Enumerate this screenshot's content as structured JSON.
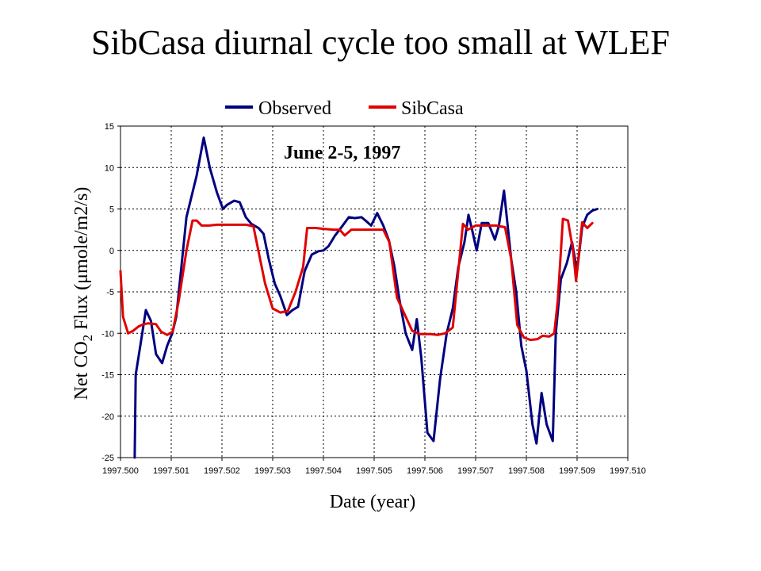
{
  "title": "SibCasa diurnal cycle too small at WLEF",
  "chart_data": {
    "type": "line",
    "xlabel": "Date (year)",
    "ylabel_prefix": "Net CO",
    "ylabel_sub": "2",
    "ylabel_suffix": " Flux (μmole/m2/s)",
    "annotation": "June 2-5, 1997",
    "xlim": [
      1997.5,
      1997.51
    ],
    "ylim": [
      -25,
      15
    ],
    "x_ticks": [
      "1997.500",
      "1997.501",
      "1997.502",
      "1997.503",
      "1997.504",
      "1997.505",
      "1997.506",
      "1997.507",
      "1997.508",
      "1997.509",
      "1997.510"
    ],
    "y_ticks": [
      "15",
      "10",
      "5",
      "0",
      "-5",
      "-10",
      "-15",
      "-20",
      "-25"
    ],
    "y_tick_values": [
      15,
      10,
      5,
      0,
      -5,
      -10,
      -15,
      -20,
      -25
    ],
    "x_tick_values": [
      1997.5,
      1997.501,
      1997.502,
      1997.503,
      1997.504,
      1997.505,
      1997.506,
      1997.507,
      1997.508,
      1997.509,
      1997.51
    ],
    "grid": "dashed",
    "legend_position": "top",
    "series": [
      {
        "name": "Observed",
        "color": "#000080",
        "points": [
          [
            1997.50028,
            -25
          ],
          [
            1997.5003,
            -15
          ],
          [
            1997.50039,
            -11.5
          ],
          [
            1997.5005,
            -7.2
          ],
          [
            1997.5006,
            -8.5
          ],
          [
            1997.5007,
            -12.5
          ],
          [
            1997.50082,
            -13.6
          ],
          [
            1997.50092,
            -11.5
          ],
          [
            1997.50102,
            -10
          ],
          [
            1997.5011,
            -8
          ],
          [
            1997.5013,
            4
          ],
          [
            1997.5015,
            9
          ],
          [
            1997.50164,
            13.6
          ],
          [
            1997.50176,
            10
          ],
          [
            1997.5019,
            7
          ],
          [
            1997.50202,
            5
          ],
          [
            1997.5021,
            5.5
          ],
          [
            1997.50224,
            6
          ],
          [
            1997.50235,
            5.8
          ],
          [
            1997.50247,
            4
          ],
          [
            1997.50258,
            3.2
          ],
          [
            1997.50272,
            2.7
          ],
          [
            1997.50282,
            2
          ],
          [
            1997.50292,
            -1
          ],
          [
            1997.50304,
            -4
          ],
          [
            1997.50315,
            -5.5
          ],
          [
            1997.50328,
            -7.8
          ],
          [
            1997.50339,
            -7.2
          ],
          [
            1997.5035,
            -6.8
          ],
          [
            1997.50363,
            -2.5
          ],
          [
            1997.50377,
            -0.5
          ],
          [
            1997.5039,
            -0.1
          ],
          [
            1997.504,
            0
          ],
          [
            1997.5041,
            0.5
          ],
          [
            1997.50423,
            1.8
          ],
          [
            1997.50438,
            3
          ],
          [
            1997.5045,
            4
          ],
          [
            1997.50462,
            3.9
          ],
          [
            1997.50475,
            4
          ],
          [
            1997.50485,
            3.5
          ],
          [
            1997.50494,
            3
          ],
          [
            1997.50506,
            4.5
          ],
          [
            1997.50518,
            3
          ],
          [
            1997.50529,
            1.2
          ],
          [
            1997.5054,
            -2
          ],
          [
            1997.5055,
            -6
          ],
          [
            1997.50562,
            -10
          ],
          [
            1997.50575,
            -12
          ],
          [
            1997.50584,
            -8.3
          ],
          [
            1997.50593,
            -13
          ],
          [
            1997.50605,
            -22
          ],
          [
            1997.50617,
            -23
          ],
          [
            1997.5063,
            -15.5
          ],
          [
            1997.50643,
            -10
          ],
          [
            1997.50655,
            -7
          ],
          [
            1997.50666,
            -2
          ],
          [
            1997.50678,
            1
          ],
          [
            1997.50686,
            4.3
          ],
          [
            1997.50693,
            2.5
          ],
          [
            1997.50702,
            0
          ],
          [
            1997.50712,
            3.3
          ],
          [
            1997.50725,
            3.3
          ],
          [
            1997.50738,
            1.3
          ],
          [
            1997.50746,
            3
          ],
          [
            1997.50756,
            7.2
          ],
          [
            1997.5077,
            -1
          ],
          [
            1997.5078,
            -5
          ],
          [
            1997.5079,
            -11.5
          ],
          [
            1997.508,
            -14.5
          ],
          [
            1997.50812,
            -21
          ],
          [
            1997.5082,
            -23.3
          ],
          [
            1997.5083,
            -17.2
          ],
          [
            1997.5084,
            -21
          ],
          [
            1997.50852,
            -23
          ],
          [
            1997.50858,
            -10
          ],
          [
            1997.50868,
            -3.5
          ],
          [
            1997.5088,
            -1.5
          ],
          [
            1997.5089,
            1
          ],
          [
            1997.509,
            -2.5
          ],
          [
            1997.5091,
            2.8
          ],
          [
            1997.5092,
            4.3
          ],
          [
            1997.5093,
            4.8
          ],
          [
            1997.5094,
            5
          ]
        ]
      },
      {
        "name": "SibCasa",
        "color": "#e00000",
        "points": [
          [
            1997.5,
            -2.5
          ],
          [
            1997.50005,
            -8
          ],
          [
            1997.50015,
            -10
          ],
          [
            1997.50025,
            -9.7
          ],
          [
            1997.50035,
            -9.2
          ],
          [
            1997.50045,
            -8.9
          ],
          [
            1997.50055,
            -8.8
          ],
          [
            1997.5007,
            -8.9
          ],
          [
            1997.5008,
            -9.8
          ],
          [
            1997.50092,
            -10.2
          ],
          [
            1997.50103,
            -9.8
          ],
          [
            1997.50115,
            -6
          ],
          [
            1997.5013,
            0
          ],
          [
            1997.50142,
            3.6
          ],
          [
            1997.5015,
            3.6
          ],
          [
            1997.5016,
            3
          ],
          [
            1997.50175,
            3
          ],
          [
            1997.5019,
            3.1
          ],
          [
            1997.5021,
            3.1
          ],
          [
            1997.5023,
            3.1
          ],
          [
            1997.50248,
            3.1
          ],
          [
            1997.50262,
            2.9
          ],
          [
            1997.50275,
            -1
          ],
          [
            1997.50285,
            -4
          ],
          [
            1997.503,
            -7
          ],
          [
            1997.50315,
            -7.5
          ],
          [
            1997.5033,
            -7.3
          ],
          [
            1997.50345,
            -5
          ],
          [
            1997.5036,
            -2
          ],
          [
            1997.50368,
            2.7
          ],
          [
            1997.50385,
            2.7
          ],
          [
            1997.504,
            2.6
          ],
          [
            1997.5042,
            2.5
          ],
          [
            1997.50432,
            2.5
          ],
          [
            1997.50442,
            1.8
          ],
          [
            1997.50455,
            2.5
          ],
          [
            1997.50475,
            2.5
          ],
          [
            1997.505,
            2.5
          ],
          [
            1997.50518,
            2.5
          ],
          [
            1997.5053,
            1
          ],
          [
            1997.50545,
            -5.7
          ],
          [
            1997.5056,
            -7.7
          ],
          [
            1997.50575,
            -9.7
          ],
          [
            1997.5059,
            -10.1
          ],
          [
            1997.5061,
            -10.1
          ],
          [
            1997.50625,
            -10.2
          ],
          [
            1997.5064,
            -10
          ],
          [
            1997.50655,
            -9.3
          ],
          [
            1997.50665,
            -3
          ],
          [
            1997.50675,
            3.2
          ],
          [
            1997.50685,
            2.5
          ],
          [
            1997.507,
            3
          ],
          [
            1997.5072,
            3
          ],
          [
            1997.5074,
            3
          ],
          [
            1997.50758,
            2.8
          ],
          [
            1997.5077,
            -1
          ],
          [
            1997.50782,
            -9
          ],
          [
            1997.50795,
            -10.5
          ],
          [
            1997.50808,
            -10.8
          ],
          [
            1997.50822,
            -10.7
          ],
          [
            1997.50832,
            -10.3
          ],
          [
            1997.50845,
            -10.4
          ],
          [
            1997.50855,
            -10
          ],
          [
            1997.50862,
            -6
          ],
          [
            1997.50872,
            3.8
          ],
          [
            1997.50882,
            3.6
          ],
          [
            1997.50892,
            0
          ],
          [
            1997.50898,
            -3.7
          ],
          [
            1997.5091,
            3.4
          ],
          [
            1997.5092,
            2.7
          ],
          [
            1997.5093,
            3.3
          ]
        ]
      }
    ]
  }
}
